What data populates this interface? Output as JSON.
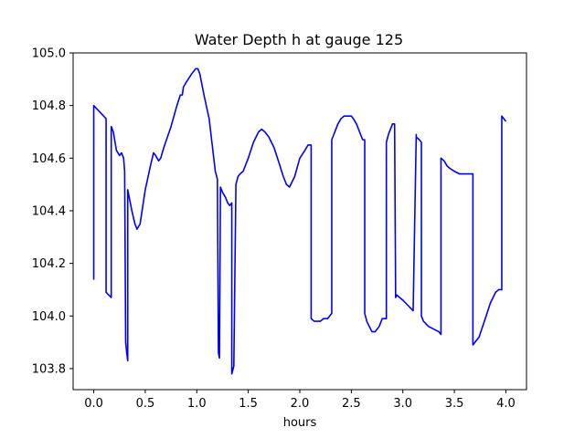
{
  "chart_data": {
    "type": "line",
    "title": "Water Depth h at gauge 125",
    "xlabel": "hours",
    "ylabel": "",
    "xlim": [
      -0.2,
      4.2
    ],
    "ylim": [
      103.72,
      105.0
    ],
    "xticks": [
      0.0,
      0.5,
      1.0,
      1.5,
      2.0,
      2.5,
      3.0,
      3.5,
      4.0
    ],
    "xtick_labels": [
      "0.0",
      "0.5",
      "1.0",
      "1.5",
      "2.0",
      "2.5",
      "3.0",
      "3.5",
      "4.0"
    ],
    "yticks": [
      103.8,
      104.0,
      104.2,
      104.4,
      104.6,
      104.8,
      105.0
    ],
    "ytick_labels": [
      "103.8",
      "104.0",
      "104.2",
      "104.4",
      "104.6",
      "104.8",
      "105.0"
    ],
    "grid": false,
    "legend": "none",
    "series": [
      {
        "color": "#0000ff",
        "x": [
          0.0,
          0.0,
          0.0,
          0.12,
          0.12,
          0.17,
          0.17,
          0.19,
          0.22,
          0.25,
          0.27,
          0.29,
          0.3,
          0.31,
          0.32,
          0.33,
          0.33,
          0.35,
          0.37,
          0.4,
          0.42,
          0.45,
          0.5,
          0.55,
          0.58,
          0.6,
          0.63,
          0.65,
          0.68,
          0.75,
          0.8,
          0.84,
          0.86,
          0.87,
          0.9,
          0.95,
          0.99,
          1.01,
          1.03,
          1.07,
          1.12,
          1.15,
          1.18,
          1.2,
          1.21,
          1.22,
          1.23,
          1.25,
          1.28,
          1.3,
          1.32,
          1.34,
          1.34,
          1.36,
          1.36,
          1.38,
          1.4,
          1.42,
          1.45,
          1.48,
          1.5,
          1.55,
          1.6,
          1.63,
          1.66,
          1.7,
          1.75,
          1.8,
          1.84,
          1.87,
          1.9,
          1.95,
          2.0,
          2.05,
          2.08,
          2.1,
          2.11,
          2.11,
          2.14,
          2.17,
          2.2,
          2.23,
          2.27,
          2.31,
          2.31,
          2.33,
          2.35,
          2.37,
          2.4,
          2.43,
          2.47,
          2.5,
          2.52,
          2.55,
          2.58,
          2.61,
          2.63,
          2.63,
          2.65,
          2.7,
          2.73,
          2.77,
          2.8,
          2.84,
          2.84,
          2.86,
          2.88,
          2.9,
          2.92,
          2.93,
          2.94,
          2.97,
          3.0,
          3.05,
          3.1,
          3.13,
          3.13,
          3.16,
          3.18,
          3.18,
          3.2,
          3.25,
          3.3,
          3.35,
          3.37,
          3.37,
          3.4,
          3.43,
          3.46,
          3.5,
          3.55,
          3.6,
          3.64,
          3.67,
          3.68,
          3.68,
          3.7,
          3.74,
          3.8,
          3.85,
          3.9,
          3.93,
          3.96,
          3.96,
          3.98,
          4.0
        ],
        "y": [
          104.2,
          104.14,
          104.8,
          104.75,
          104.09,
          104.07,
          104.72,
          104.7,
          104.63,
          104.61,
          104.62,
          104.6,
          104.55,
          103.9,
          103.86,
          103.83,
          104.48,
          104.44,
          104.4,
          104.35,
          104.33,
          104.35,
          104.48,
          104.57,
          104.62,
          104.61,
          104.59,
          104.6,
          104.64,
          104.72,
          104.79,
          104.84,
          104.84,
          104.87,
          104.89,
          104.92,
          104.94,
          104.94,
          104.92,
          104.84,
          104.75,
          104.65,
          104.55,
          104.52,
          103.86,
          103.84,
          104.49,
          104.47,
          104.45,
          104.43,
          104.42,
          104.43,
          103.78,
          103.81,
          103.82,
          104.5,
          104.53,
          104.54,
          104.55,
          104.58,
          104.6,
          104.66,
          104.7,
          104.71,
          104.7,
          104.68,
          104.64,
          104.58,
          104.53,
          104.5,
          104.49,
          104.53,
          104.6,
          104.63,
          104.65,
          104.65,
          104.65,
          103.99,
          103.98,
          103.98,
          103.98,
          103.99,
          103.99,
          104.01,
          104.67,
          104.69,
          104.71,
          104.73,
          104.75,
          104.76,
          104.76,
          104.76,
          104.75,
          104.73,
          104.7,
          104.67,
          104.67,
          104.01,
          103.98,
          103.94,
          103.94,
          103.96,
          103.99,
          103.99,
          104.66,
          104.69,
          104.71,
          104.73,
          104.73,
          104.07,
          104.08,
          104.07,
          104.06,
          104.04,
          104.02,
          104.69,
          104.68,
          104.67,
          104.66,
          104.0,
          103.98,
          103.96,
          103.95,
          103.94,
          103.93,
          104.6,
          104.59,
          104.57,
          104.56,
          104.55,
          104.54,
          104.54,
          104.54,
          104.54,
          104.54,
          103.89,
          103.9,
          103.92,
          103.99,
          104.05,
          104.09,
          104.1,
          104.1,
          104.76,
          104.75,
          104.74
        ]
      }
    ]
  }
}
